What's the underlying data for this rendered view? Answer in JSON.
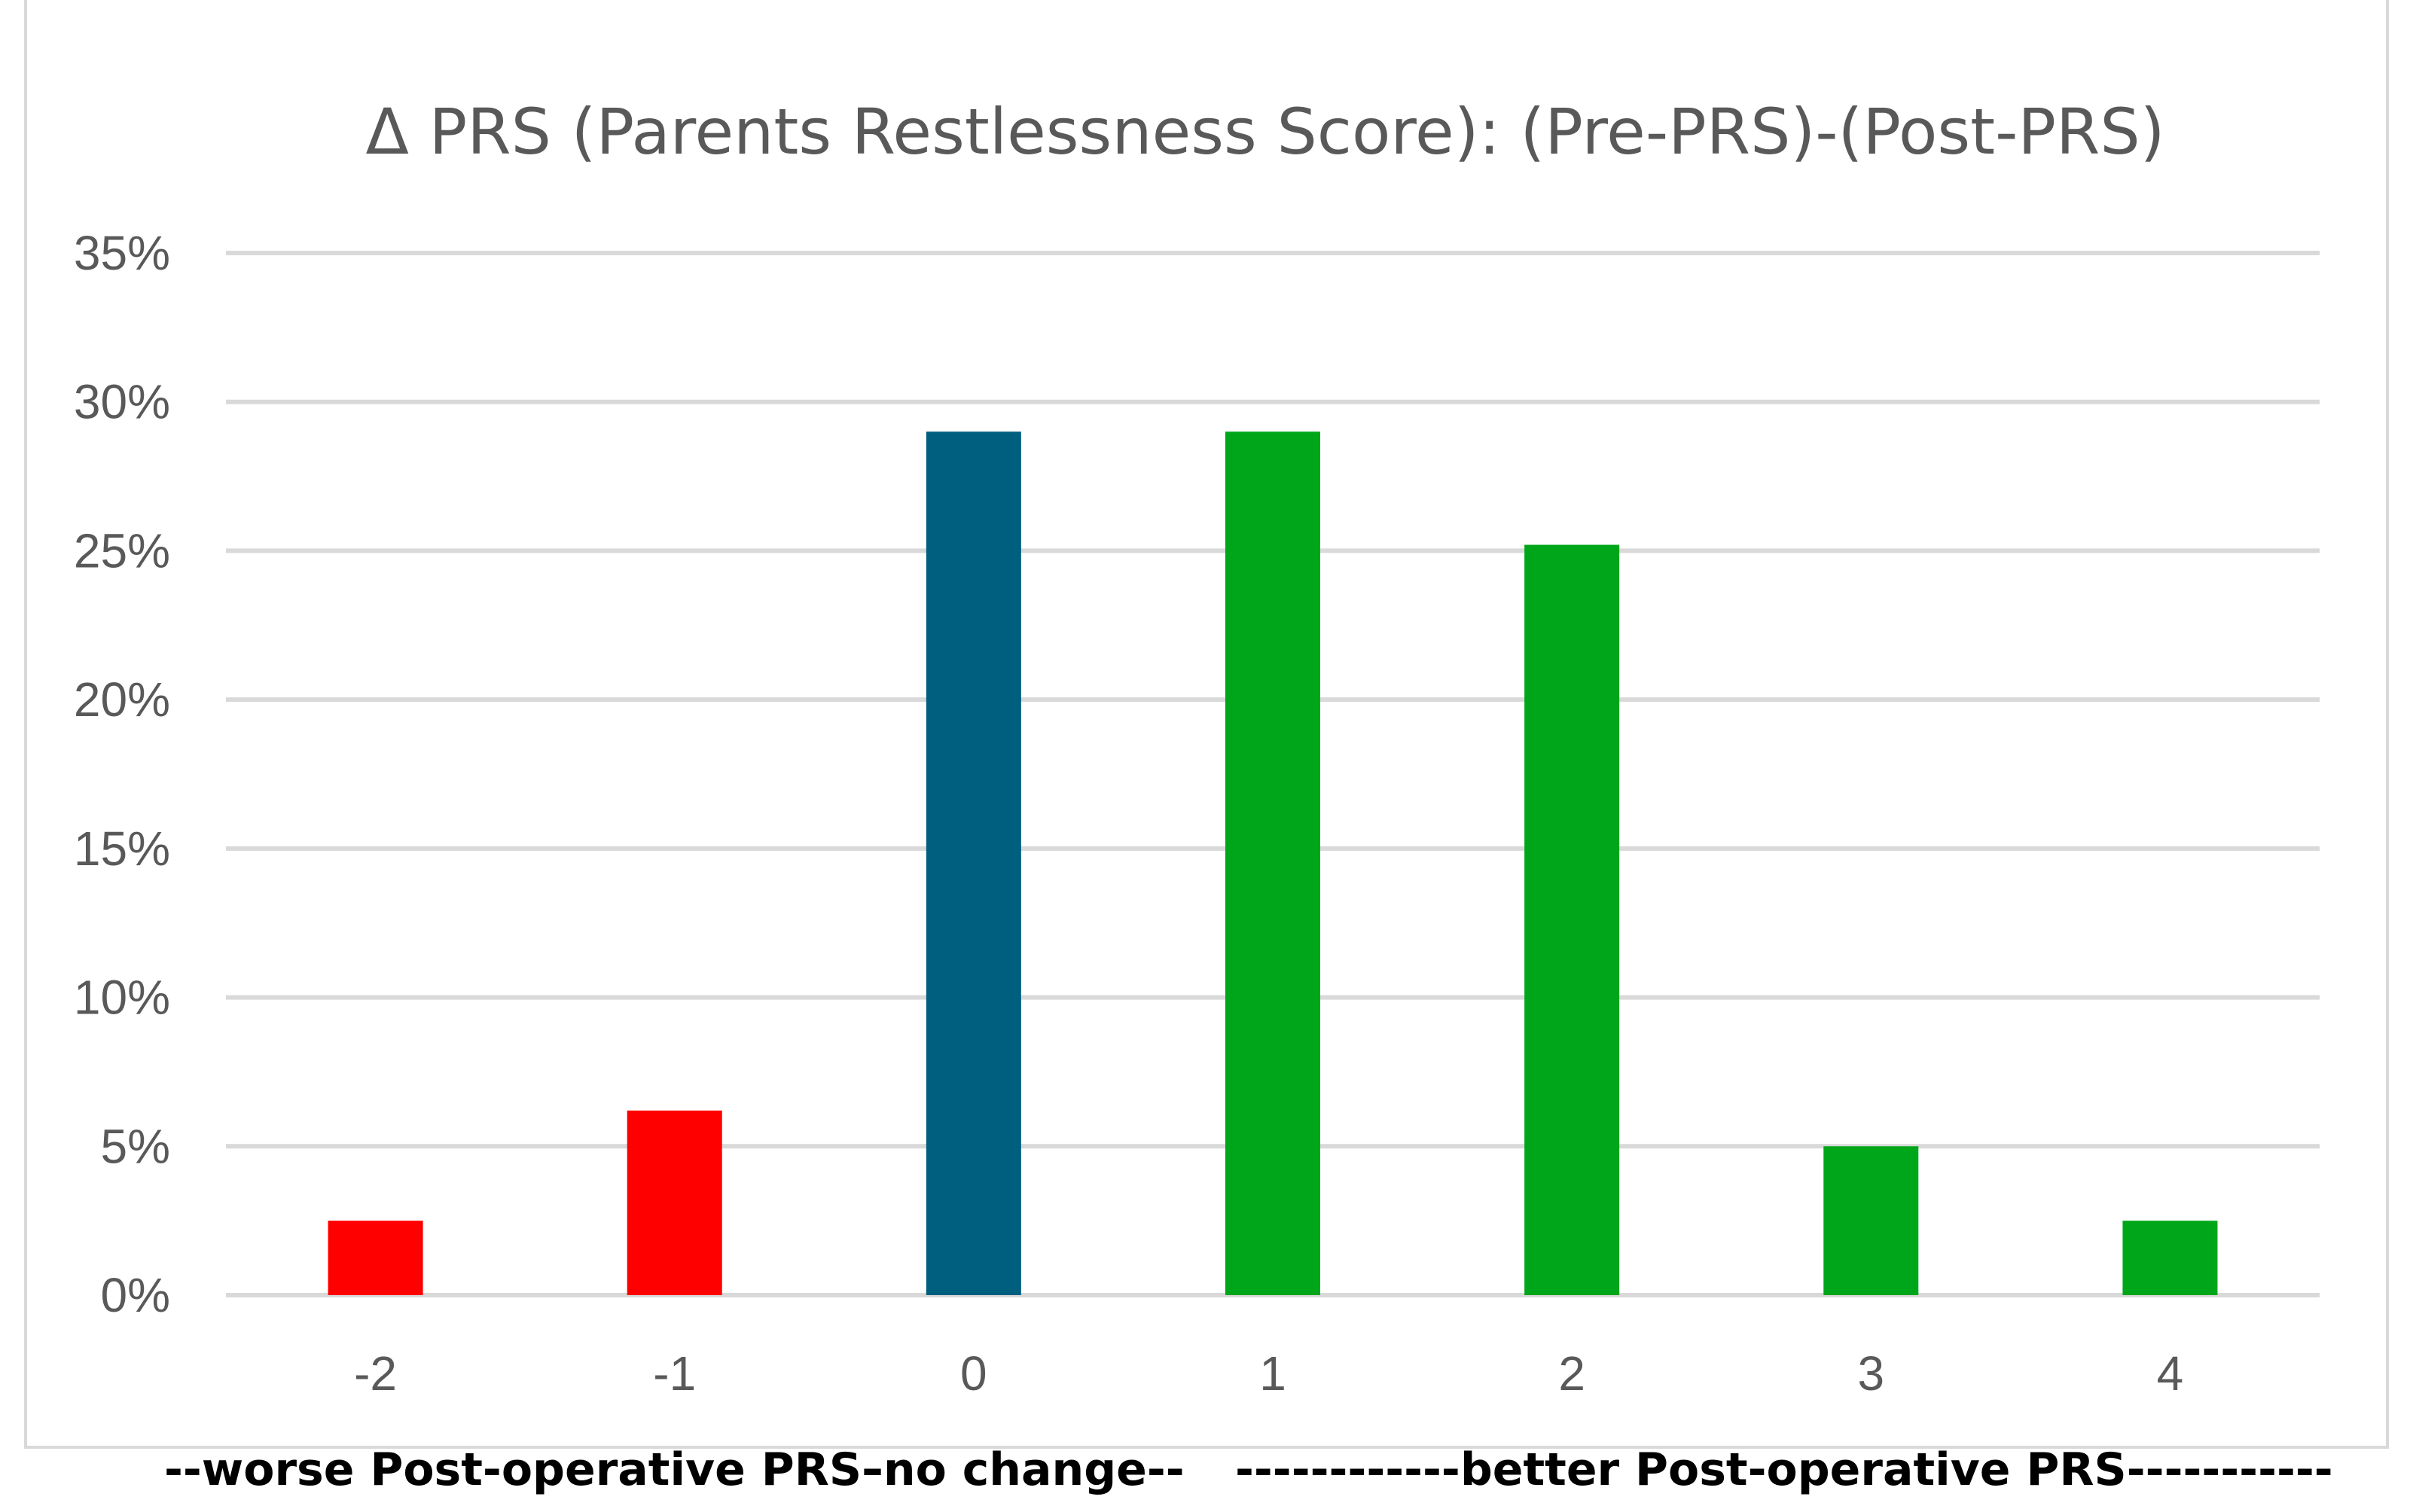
{
  "chart_data": {
    "type": "bar",
    "title": "Δ PRS (Parents Restlessness Score): (Pre-PRS)-(Post-PRS)",
    "xlabel": "",
    "ylabel": "",
    "categories": [
      "-2",
      "-1",
      "0",
      "1",
      "2",
      "3",
      "4"
    ],
    "values": [
      2.5,
      6.2,
      29.0,
      29.0,
      25.2,
      5.0,
      2.5
    ],
    "bar_colors": [
      "#ff0000",
      "#ff0000",
      "#005f7f",
      "#00a619",
      "#00a619",
      "#00a619",
      "#00a619"
    ],
    "ylim": [
      0,
      35
    ],
    "y_ticks": [
      "0%",
      "5%",
      "10%",
      "15%",
      "20%",
      "25%",
      "30%",
      "35%"
    ],
    "grid": true,
    "legend": "none",
    "annotations": {
      "worse": "--worse Post-operative PRS-",
      "no_change": "-no change--",
      "better": "------------better Post-operative PRS-----------"
    }
  }
}
